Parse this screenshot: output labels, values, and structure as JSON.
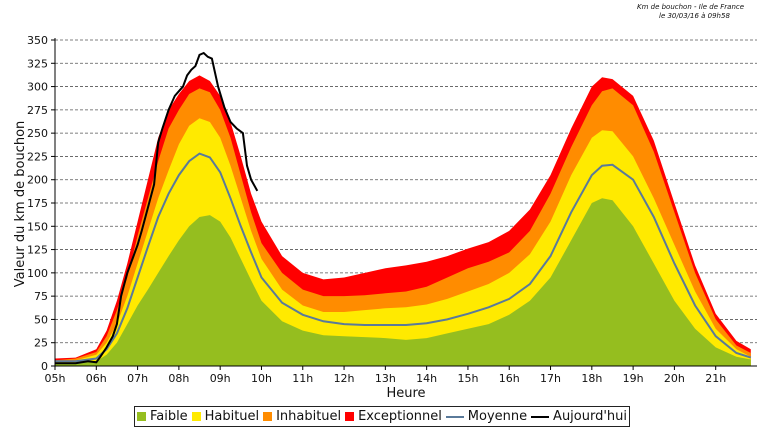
{
  "header": {
    "line1": "Km de bouchon - Ile de France",
    "line2": "le 30/03/16 à 09h58"
  },
  "chart_data": {
    "type": "area",
    "title": "",
    "xlabel": "Heure",
    "ylabel": "Valeur du  km de bouchon",
    "ylim": [
      0,
      350
    ],
    "xlim": [
      5,
      22
    ],
    "yticks": [
      0,
      25,
      50,
      75,
      100,
      125,
      150,
      175,
      200,
      225,
      250,
      275,
      300,
      325,
      350
    ],
    "xticks": [
      {
        "v": 5,
        "label": "05h"
      },
      {
        "v": 6,
        "label": "06h"
      },
      {
        "v": 7,
        "label": "07h"
      },
      {
        "v": 8,
        "label": "08h"
      },
      {
        "v": 9,
        "label": "09h"
      },
      {
        "v": 10,
        "label": "10h"
      },
      {
        "v": 11,
        "label": "11h"
      },
      {
        "v": 12,
        "label": "12h"
      },
      {
        "v": 13,
        "label": "13h"
      },
      {
        "v": 14,
        "label": "14h"
      },
      {
        "v": 15,
        "label": "15h"
      },
      {
        "v": 16,
        "label": "16h"
      },
      {
        "v": 17,
        "label": "17h"
      },
      {
        "v": 18,
        "label": "18h"
      },
      {
        "v": 19,
        "label": "19h"
      },
      {
        "v": 20,
        "label": "20h"
      },
      {
        "v": 21,
        "label": "21h"
      }
    ],
    "grid": "horizontal dashed",
    "legend_position": "bottom",
    "x": [
      5,
      5.5,
      6,
      6.25,
      6.5,
      6.75,
      7,
      7.25,
      7.5,
      7.75,
      8,
      8.25,
      8.5,
      8.75,
      9,
      9.25,
      9.5,
      9.75,
      10,
      10.5,
      11,
      11.5,
      12,
      12.5,
      13,
      13.5,
      14,
      14.5,
      15,
      15.5,
      16,
      16.5,
      17,
      17.5,
      18,
      18.25,
      18.5,
      19,
      19.5,
      20,
      20.5,
      21,
      21.5,
      21.85
    ],
    "series": [
      {
        "name": "Faible",
        "color": "#95be1f",
        "kind": "band",
        "values": [
          2,
          3,
          5,
          12,
          25,
          45,
          65,
          82,
          100,
          118,
          135,
          150,
          160,
          162,
          155,
          138,
          115,
          92,
          70,
          48,
          38,
          33,
          32,
          31,
          30,
          28,
          30,
          35,
          40,
          45,
          55,
          70,
          95,
          135,
          175,
          180,
          178,
          150,
          110,
          70,
          40,
          20,
          10,
          7
        ]
      },
      {
        "name": "Habituel",
        "color": "#ffea00",
        "kind": "band",
        "values": [
          4,
          6,
          12,
          25,
          45,
          75,
          110,
          145,
          180,
          210,
          238,
          258,
          266,
          262,
          245,
          215,
          180,
          145,
          115,
          82,
          65,
          58,
          58,
          60,
          62,
          63,
          66,
          72,
          80,
          88,
          100,
          120,
          155,
          205,
          245,
          253,
          252,
          225,
          180,
          130,
          80,
          40,
          18,
          10
        ]
      },
      {
        "name": "Inhabituel",
        "color": "#ff8c00",
        "kind": "band",
        "values": [
          6,
          8,
          15,
          32,
          60,
          95,
          140,
          180,
          220,
          255,
          275,
          292,
          298,
          294,
          275,
          245,
          205,
          165,
          132,
          100,
          82,
          75,
          75,
          76,
          78,
          80,
          85,
          95,
          105,
          112,
          122,
          145,
          185,
          235,
          280,
          295,
          298,
          280,
          230,
          165,
          100,
          50,
          22,
          14
        ]
      },
      {
        "name": "Exceptionnel",
        "color": "#ff0000",
        "kind": "band",
        "values": [
          8,
          9,
          18,
          38,
          70,
          110,
          155,
          200,
          245,
          275,
          292,
          306,
          312,
          306,
          290,
          262,
          225,
          185,
          155,
          118,
          100,
          93,
          95,
          100,
          105,
          108,
          112,
          118,
          126,
          133,
          145,
          168,
          205,
          255,
          300,
          310,
          308,
          290,
          242,
          175,
          108,
          56,
          27,
          18
        ]
      },
      {
        "name": "Moyenne",
        "color": "#5a7a9a",
        "kind": "line",
        "values": [
          5,
          5,
          8,
          18,
          35,
          62,
          95,
          128,
          160,
          185,
          205,
          220,
          228,
          224,
          208,
          180,
          150,
          122,
          95,
          68,
          55,
          48,
          45,
          44,
          44,
          44,
          46,
          50,
          56,
          63,
          72,
          88,
          118,
          165,
          205,
          215,
          216,
          200,
          160,
          110,
          65,
          32,
          14,
          9
        ]
      },
      {
        "name": "Aujourd'hui",
        "color": "#000000",
        "kind": "line",
        "x": [
          5,
          5.5,
          5.8,
          6.0,
          6.1,
          6.25,
          6.4,
          6.5,
          6.6,
          6.75,
          6.9,
          7.0,
          7.1,
          7.25,
          7.4,
          7.5,
          7.6,
          7.75,
          7.9,
          8.0,
          8.1,
          8.2,
          8.3,
          8.4,
          8.5,
          8.6,
          8.7,
          8.8,
          8.95,
          9.1,
          9.25,
          9.4,
          9.55,
          9.65,
          9.75,
          9.9
        ],
        "values": [
          3,
          3,
          5,
          4,
          10,
          20,
          32,
          45,
          75,
          100,
          118,
          130,
          145,
          170,
          195,
          240,
          255,
          275,
          290,
          295,
          300,
          312,
          318,
          322,
          334,
          336,
          332,
          330,
          300,
          278,
          262,
          255,
          250,
          215,
          200,
          188
        ]
      }
    ]
  }
}
